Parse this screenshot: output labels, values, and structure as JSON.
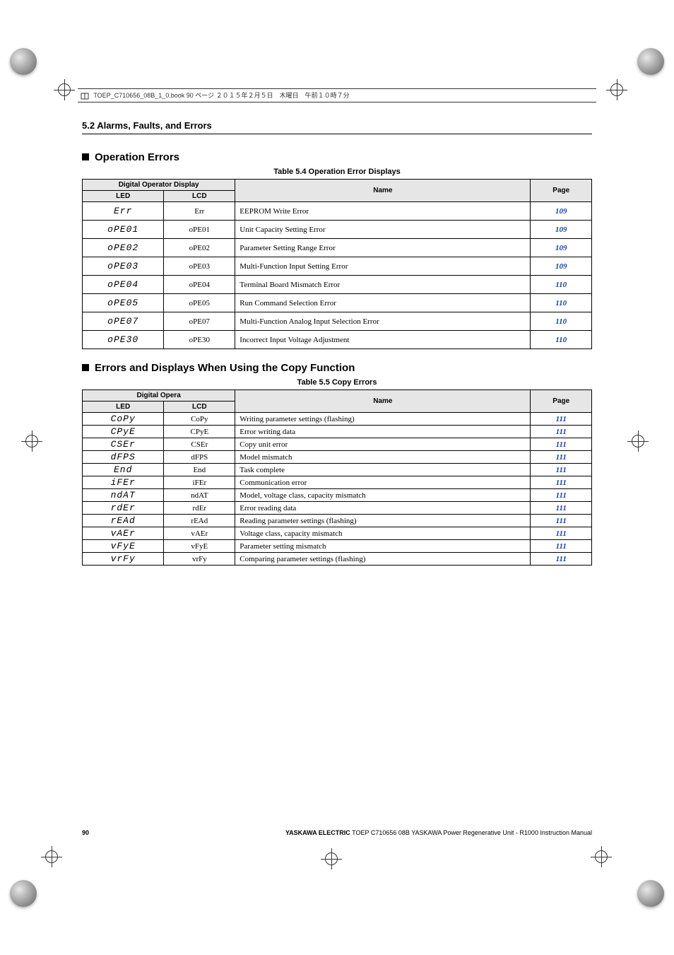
{
  "print_header": "TOEP_C710656_08B_1_0.book  90 ページ  ２０１５年２月５日　木曜日　午前１０時７分",
  "section_path": "5.2  Alarms, Faults, and Errors",
  "sub1_title": "Operation Errors",
  "table1_caption": "Table 5.4  Operation Error Displays",
  "table1_header_group": "Digital Operator Display",
  "col_led": "LED",
  "col_lcd": "LCD",
  "col_name": "Name",
  "col_page": "Page",
  "table1_rows": [
    {
      "led": "Err",
      "lcd": "Err",
      "name": "EEPROM Write Error",
      "page": "109"
    },
    {
      "led": "oPE01",
      "lcd": "oPE01",
      "name": "Unit Capacity Setting Error",
      "page": "109"
    },
    {
      "led": "oPE02",
      "lcd": "oPE02",
      "name": "Parameter Setting Range Error",
      "page": "109"
    },
    {
      "led": "oPE03",
      "lcd": "oPE03",
      "name": "Multi-Function Input Setting Error",
      "page": "109"
    },
    {
      "led": "oPE04",
      "lcd": "oPE04",
      "name": "Terminal Board Mismatch Error",
      "page": "110"
    },
    {
      "led": "oPE05",
      "lcd": "oPE05",
      "name": "Run Command Selection Error",
      "page": "110"
    },
    {
      "led": "oPE07",
      "lcd": "oPE07",
      "name": "Multi-Function Analog Input Selection Error",
      "page": "110"
    },
    {
      "led": "oPE30",
      "lcd": "oPE30",
      "name": "Incorrect Input Voltage Adjustment",
      "page": "110"
    }
  ],
  "sub2_title": "Errors and Displays When Using the Copy Function",
  "table2_caption": "Table 5.5  Copy Errors",
  "table2_header_group": "Digital Opera",
  "table2_rows": [
    {
      "led": "CoPy",
      "lcd": "CoPy",
      "name": "Writing parameter settings (flashing)",
      "page": "111"
    },
    {
      "led": "CPyE",
      "lcd": "CPyE",
      "name": "Error writing data",
      "page": "111"
    },
    {
      "led": "CSEr",
      "lcd": "CSEr",
      "name": "Copy unit error",
      "page": "111"
    },
    {
      "led": "dFPS",
      "lcd": "dFPS",
      "name": "Model mismatch",
      "page": "111"
    },
    {
      "led": "End",
      "lcd": "End",
      "name": "Task complete",
      "page": "111"
    },
    {
      "led": "iFEr",
      "lcd": "iFEr",
      "name": "Communication error",
      "page": "111"
    },
    {
      "led": "ndAT",
      "lcd": "ndAT",
      "name": "Model, voltage class, capacity mismatch",
      "page": "111"
    },
    {
      "led": "rdEr",
      "lcd": "rdEr",
      "name": "Error reading data",
      "page": "111"
    },
    {
      "led": "rEAd",
      "lcd": "rEAd",
      "name": "Reading parameter settings (flashing)",
      "page": "111"
    },
    {
      "led": "vAEr",
      "lcd": "vAEr",
      "name": "Voltage class, capacity mismatch",
      "page": "111"
    },
    {
      "led": "vFyE",
      "lcd": "vFyE",
      "name": "Parameter setting mismatch",
      "page": "111"
    },
    {
      "led": "vrFy",
      "lcd": "vrFy",
      "name": "Comparing parameter settings (flashing)",
      "page": "111"
    }
  ],
  "footer_page": "90",
  "footer_brand": "YASKAWA ELECTRIC",
  "footer_doc": " TOEP C710656 08B YASKAWA Power Regenerative Unit - R1000 Instruction Manual",
  "colors": {
    "link": "#1a3fa0",
    "header_bg": "#e6e6e6",
    "border": "#000000"
  },
  "col_widths_t1": {
    "led": "16%",
    "lcd": "14%",
    "name": "58%",
    "page": "12%"
  },
  "col_widths_t2": {
    "led": "16%",
    "lcd": "14%",
    "name": "58%",
    "page": "12%"
  }
}
